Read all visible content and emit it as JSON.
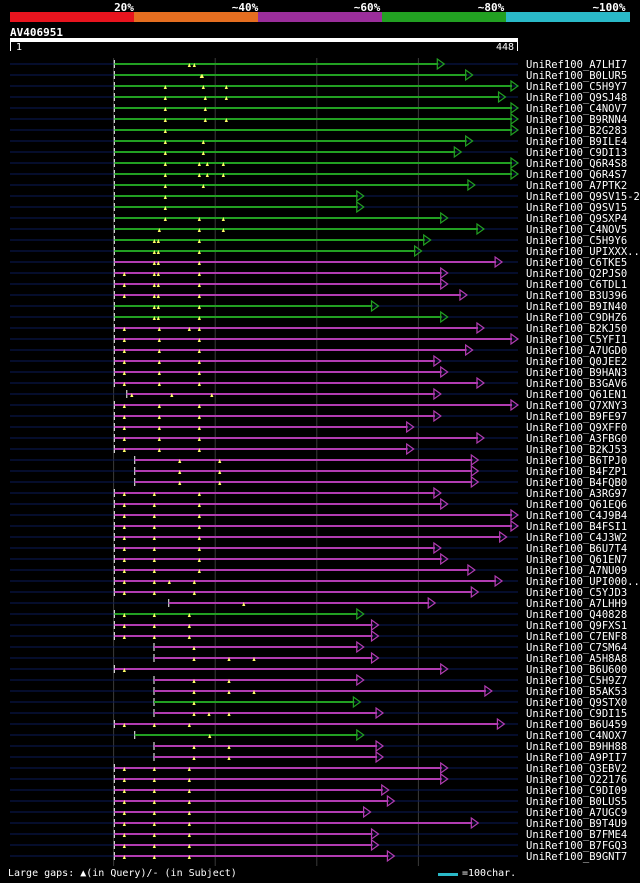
{
  "legend": {
    "segments": [
      {
        "label": "20%",
        "color": "#e8141e"
      },
      {
        "label": "~40%",
        "color": "#e56e20"
      },
      {
        "label": "~60%",
        "color": "#9b2e9b"
      },
      {
        "label": "~80%",
        "color": "#22a022"
      },
      {
        "label": "~100%",
        "color": "#2ab9c8"
      }
    ]
  },
  "query": {
    "id": "AV406951",
    "start": "1",
    "end": "448"
  },
  "colors": {
    "green": "#22a022",
    "magenta": "#b23cb2",
    "navy": "#0a1a58",
    "grid": "#3a3a3a",
    "gap": "#ffff66"
  },
  "hits": [
    {
      "label": "UniRef100_A7LHI7",
      "color": "green",
      "start": 92,
      "end": 383,
      "gaps": [
        80,
        75
      ]
    },
    {
      "label": "UniRef100_B0LUR5",
      "color": "green",
      "start": 92,
      "end": 408,
      "gaps": [
        87,
        88
      ]
    },
    {
      "label": "UniRef100_C5H9Y7",
      "color": "green",
      "start": 92,
      "end": 448,
      "gaps": [
        51,
        89,
        112
      ]
    },
    {
      "label": "UniRef100_Q9SJ48",
      "color": "green",
      "start": 92,
      "end": 437,
      "gaps": [
        51,
        91,
        112
      ]
    },
    {
      "label": "UniRef100_C4NOV7",
      "color": "green",
      "start": 92,
      "end": 448,
      "gaps": [
        51,
        91
      ]
    },
    {
      "label": "UniRef100_B9RNN4",
      "color": "green",
      "start": 92,
      "end": 448,
      "gaps": [
        51,
        91,
        112
      ]
    },
    {
      "label": "UniRef100_B2G283",
      "color": "green",
      "start": 92,
      "end": 448,
      "gaps": [
        51
      ]
    },
    {
      "label": "UniRef100_B9ILE4",
      "color": "green",
      "start": 92,
      "end": 408,
      "gaps": [
        51,
        89
      ]
    },
    {
      "label": "UniRef100_C9DI13",
      "color": "green",
      "start": 92,
      "end": 398,
      "gaps": [
        51,
        89
      ]
    },
    {
      "label": "UniRef100_Q6R4S8",
      "color": "green",
      "start": 92,
      "end": 448,
      "gaps": [
        51,
        85,
        93,
        109
      ]
    },
    {
      "label": "UniRef100_Q6R4S7",
      "color": "green",
      "start": 92,
      "end": 448,
      "gaps": [
        51,
        85,
        93,
        109
      ]
    },
    {
      "label": "UniRef100_A7PTK2",
      "color": "green",
      "start": 92,
      "end": 410,
      "gaps": [
        51,
        89
      ]
    },
    {
      "label": "UniRef100_Q9SV15-2",
      "color": "green",
      "start": 92,
      "end": 312,
      "gaps": [
        51
      ]
    },
    {
      "label": "UniRef100_Q9SV15",
      "color": "green",
      "start": 92,
      "end": 312,
      "gaps": [
        51
      ]
    },
    {
      "label": "UniRef100_Q9SXP4",
      "color": "green",
      "start": 92,
      "end": 386,
      "gaps": [
        51,
        85,
        109
      ]
    },
    {
      "label": "UniRef100_C4NOV5",
      "color": "green",
      "start": 92,
      "end": 418,
      "gaps": [
        45,
        85,
        109
      ]
    },
    {
      "label": "UniRef100_C5H9Y6",
      "color": "green",
      "start": 92,
      "end": 371,
      "gaps": [
        40,
        44,
        85
      ]
    },
    {
      "label": "UniRef100_UPIXXX..",
      "color": "green",
      "start": 92,
      "end": 363,
      "gaps": [
        40,
        44,
        85
      ]
    },
    {
      "label": "UniRef100_C6TKE5",
      "color": "magenta",
      "start": 92,
      "end": 434,
      "gaps": [
        40,
        44,
        85
      ]
    },
    {
      "label": "UniRef100_Q2PJS0",
      "color": "magenta",
      "start": 92,
      "end": 386,
      "gaps": [
        10,
        40,
        44,
        85
      ]
    },
    {
      "label": "UniRef100_C6TDL1",
      "color": "magenta",
      "start": 92,
      "end": 386,
      "gaps": [
        10,
        40,
        44,
        85
      ]
    },
    {
      "label": "UniRef100_B3U396",
      "color": "magenta",
      "start": 92,
      "end": 403,
      "gaps": [
        10,
        40,
        44,
        85
      ]
    },
    {
      "label": "UniRef100_B9IN40",
      "color": "green",
      "start": 92,
      "end": 325,
      "gaps": [
        40,
        44,
        85
      ]
    },
    {
      "label": "UniRef100_C9DHZ6",
      "color": "green",
      "start": 92,
      "end": 386,
      "gaps": [
        40,
        44,
        85
      ]
    },
    {
      "label": "UniRef100_B2KJ50",
      "color": "magenta",
      "start": 92,
      "end": 418,
      "gaps": [
        10,
        45,
        75,
        85
      ]
    },
    {
      "label": "UniRef100_C5YFI1",
      "color": "magenta",
      "start": 92,
      "end": 448,
      "gaps": [
        10,
        45,
        85
      ]
    },
    {
      "label": "UniRef100_A7UGD0",
      "color": "magenta",
      "start": 92,
      "end": 408,
      "gaps": [
        10,
        45,
        85
      ]
    },
    {
      "label": "UniRef100_Q0JEE2",
      "color": "magenta",
      "start": 92,
      "end": 380,
      "gaps": [
        10,
        45,
        85
      ]
    },
    {
      "label": "UniRef100_B9HAN3",
      "color": "magenta",
      "start": 92,
      "end": 386,
      "gaps": [
        10,
        45,
        85
      ]
    },
    {
      "label": "UniRef100_B3GAV6",
      "color": "magenta",
      "start": 92,
      "end": 418,
      "gaps": [
        10,
        45,
        85
      ]
    },
    {
      "label": "UniRef100_Q61EN1",
      "color": "magenta",
      "start": 103,
      "end": 380,
      "gaps": [
        5,
        45,
        85
      ]
    },
    {
      "label": "UniRef100_Q7XNY3",
      "color": "magenta",
      "start": 92,
      "end": 448,
      "gaps": [
        10,
        45,
        85
      ]
    },
    {
      "label": "UniRef100_B9FE97",
      "color": "magenta",
      "start": 92,
      "end": 380,
      "gaps": [
        10,
        45,
        85
      ]
    },
    {
      "label": "UniRef100_Q9XFF0",
      "color": "magenta",
      "start": 92,
      "end": 356,
      "gaps": [
        10,
        45,
        85
      ]
    },
    {
      "label": "UniRef100_A3FBG0",
      "color": "magenta",
      "start": 92,
      "end": 418,
      "gaps": [
        10,
        45,
        85
      ]
    },
    {
      "label": "UniRef100_B2KJ53",
      "color": "magenta",
      "start": 92,
      "end": 356,
      "gaps": [
        10,
        45,
        85
      ]
    },
    {
      "label": "UniRef100_B6TPJ0",
      "color": "magenta",
      "start": 110,
      "end": 413,
      "gaps": [
        45,
        85
      ]
    },
    {
      "label": "UniRef100_B4FZP1",
      "color": "magenta",
      "start": 110,
      "end": 413,
      "gaps": [
        45,
        85
      ]
    },
    {
      "label": "UniRef100_B4FQB0",
      "color": "magenta",
      "start": 110,
      "end": 413,
      "gaps": [
        45,
        85
      ]
    },
    {
      "label": "UniRef100_A3RG97",
      "color": "magenta",
      "start": 92,
      "end": 380,
      "gaps": [
        10,
        40,
        85
      ]
    },
    {
      "label": "UniRef100_Q61EQ6",
      "color": "magenta",
      "start": 92,
      "end": 386,
      "gaps": [
        10,
        40,
        85
      ]
    },
    {
      "label": "UniRef100_C4J9B4",
      "color": "magenta",
      "start": 92,
      "end": 448,
      "gaps": [
        10,
        40,
        85
      ]
    },
    {
      "label": "UniRef100_B4FSI1",
      "color": "magenta",
      "start": 92,
      "end": 448,
      "gaps": [
        10,
        40,
        85
      ]
    },
    {
      "label": "UniRef100_C4J3W2",
      "color": "magenta",
      "start": 92,
      "end": 438,
      "gaps": [
        10,
        40,
        85
      ]
    },
    {
      "label": "UniRef100_B6U7T4",
      "color": "magenta",
      "start": 92,
      "end": 380,
      "gaps": [
        10,
        40,
        85
      ]
    },
    {
      "label": "UniRef100_Q61EN7",
      "color": "magenta",
      "start": 92,
      "end": 386,
      "gaps": [
        10,
        40,
        85
      ]
    },
    {
      "label": "UniRef100_A7NU09",
      "color": "magenta",
      "start": 92,
      "end": 410,
      "gaps": [
        10,
        40,
        85
      ]
    },
    {
      "label": "UniRef100_UPI000..",
      "color": "magenta",
      "start": 92,
      "end": 434,
      "gaps": [
        10,
        40,
        55,
        80
      ]
    },
    {
      "label": "UniRef100_C5YJD3",
      "color": "magenta",
      "start": 92,
      "end": 413,
      "gaps": [
        10,
        40,
        80
      ]
    },
    {
      "label": "UniRef100_A7LHH9",
      "color": "magenta",
      "start": 140,
      "end": 375,
      "gaps": [
        75
      ]
    },
    {
      "label": "UniRef100_Q40828",
      "color": "green",
      "start": 92,
      "end": 312,
      "gaps": [
        10,
        40,
        75
      ]
    },
    {
      "label": "UniRef100_Q9FXS1",
      "color": "magenta",
      "start": 92,
      "end": 325,
      "gaps": [
        10,
        40,
        75
      ]
    },
    {
      "label": "UniRef100_C7ENF8",
      "color": "magenta",
      "start": 92,
      "end": 325,
      "gaps": [
        10,
        40,
        75
      ]
    },
    {
      "label": "UniRef100_C7SM64",
      "color": "magenta",
      "start": 127,
      "end": 312,
      "gaps": [
        40
      ]
    },
    {
      "label": "UniRef100_A5H8A8",
      "color": "magenta",
      "start": 127,
      "end": 325,
      "gaps": [
        40,
        75,
        100
      ]
    },
    {
      "label": "UniRef100_B6U600",
      "color": "magenta",
      "start": 92,
      "end": 386,
      "gaps": [
        10
      ]
    },
    {
      "label": "UniRef100_C5H9Z7",
      "color": "magenta",
      "start": 127,
      "end": 312,
      "gaps": [
        40,
        75
      ]
    },
    {
      "label": "UniRef100_B5AK53",
      "color": "magenta",
      "start": 127,
      "end": 425,
      "gaps": [
        40,
        75,
        100
      ]
    },
    {
      "label": "UniRef100_Q9STX0",
      "color": "green",
      "start": 127,
      "end": 309,
      "gaps": [
        40
      ]
    },
    {
      "label": "UniRef100_C9DI15",
      "color": "magenta",
      "start": 127,
      "end": 329,
      "gaps": [
        40,
        55,
        75
      ]
    },
    {
      "label": "UniRef100_B6U459",
      "color": "magenta",
      "start": 92,
      "end": 436,
      "gaps": [
        10,
        40,
        75
      ]
    },
    {
      "label": "UniRef100_C4NOX7",
      "color": "green",
      "start": 110,
      "end": 312,
      "gaps": [
        75
      ]
    },
    {
      "label": "UniRef100_B9HH88",
      "color": "magenta",
      "start": 127,
      "end": 329,
      "gaps": [
        40,
        75
      ]
    },
    {
      "label": "UniRef100_A9PII7",
      "color": "magenta",
      "start": 127,
      "end": 329,
      "gaps": [
        40,
        75
      ]
    },
    {
      "label": "UniRef100_Q3EBV2",
      "color": "magenta",
      "start": 92,
      "end": 386,
      "gaps": [
        10,
        40,
        75
      ]
    },
    {
      "label": "UniRef100_O22176",
      "color": "magenta",
      "start": 92,
      "end": 386,
      "gaps": [
        10,
        40,
        75
      ]
    },
    {
      "label": "UniRef100_C9DI09",
      "color": "magenta",
      "start": 92,
      "end": 334,
      "gaps": [
        10,
        40,
        75
      ]
    },
    {
      "label": "UniRef100_B0LUS5",
      "color": "magenta",
      "start": 92,
      "end": 339,
      "gaps": [
        10,
        40,
        75
      ]
    },
    {
      "label": "UniRef100_A7UGC9",
      "color": "magenta",
      "start": 92,
      "end": 318,
      "gaps": [
        10,
        40,
        75
      ]
    },
    {
      "label": "UniRef100_B9T4U9",
      "color": "magenta",
      "start": 92,
      "end": 413,
      "gaps": [
        10,
        40,
        75
      ]
    },
    {
      "label": "UniRef100_B7FME4",
      "color": "magenta",
      "start": 92,
      "end": 325,
      "gaps": [
        10,
        40,
        75
      ]
    },
    {
      "label": "UniRef100_B7FGQ3",
      "color": "magenta",
      "start": 92,
      "end": 325,
      "gaps": [
        10,
        40,
        75
      ]
    },
    {
      "label": "UniRef100_B9GNT7",
      "color": "magenta",
      "start": 92,
      "end": 339,
      "gaps": [
        10,
        40,
        75
      ]
    }
  ],
  "footer": {
    "gaps_text": "Large gaps: ▲(in Query)/- (in Subject)",
    "scale_text": "=100char."
  }
}
